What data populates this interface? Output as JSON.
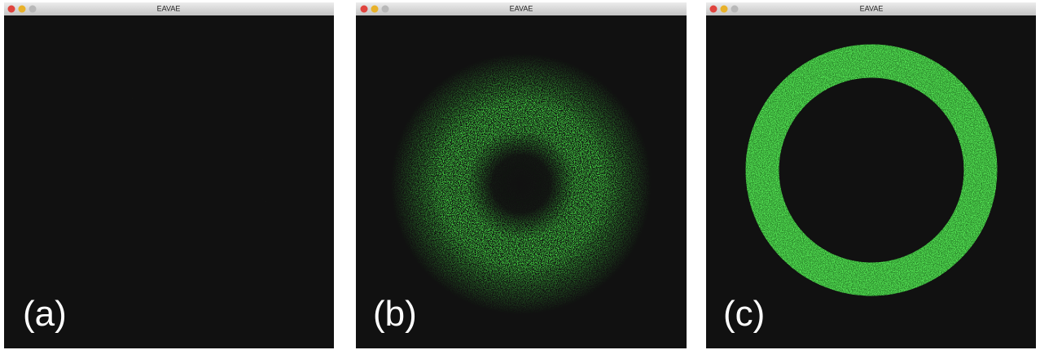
{
  "windows": [
    {
      "title": "EAVAE",
      "label": "(a)"
    },
    {
      "title": "EAVAE",
      "label": "(b)"
    },
    {
      "title": "EAVAE",
      "label": "(c)"
    }
  ]
}
